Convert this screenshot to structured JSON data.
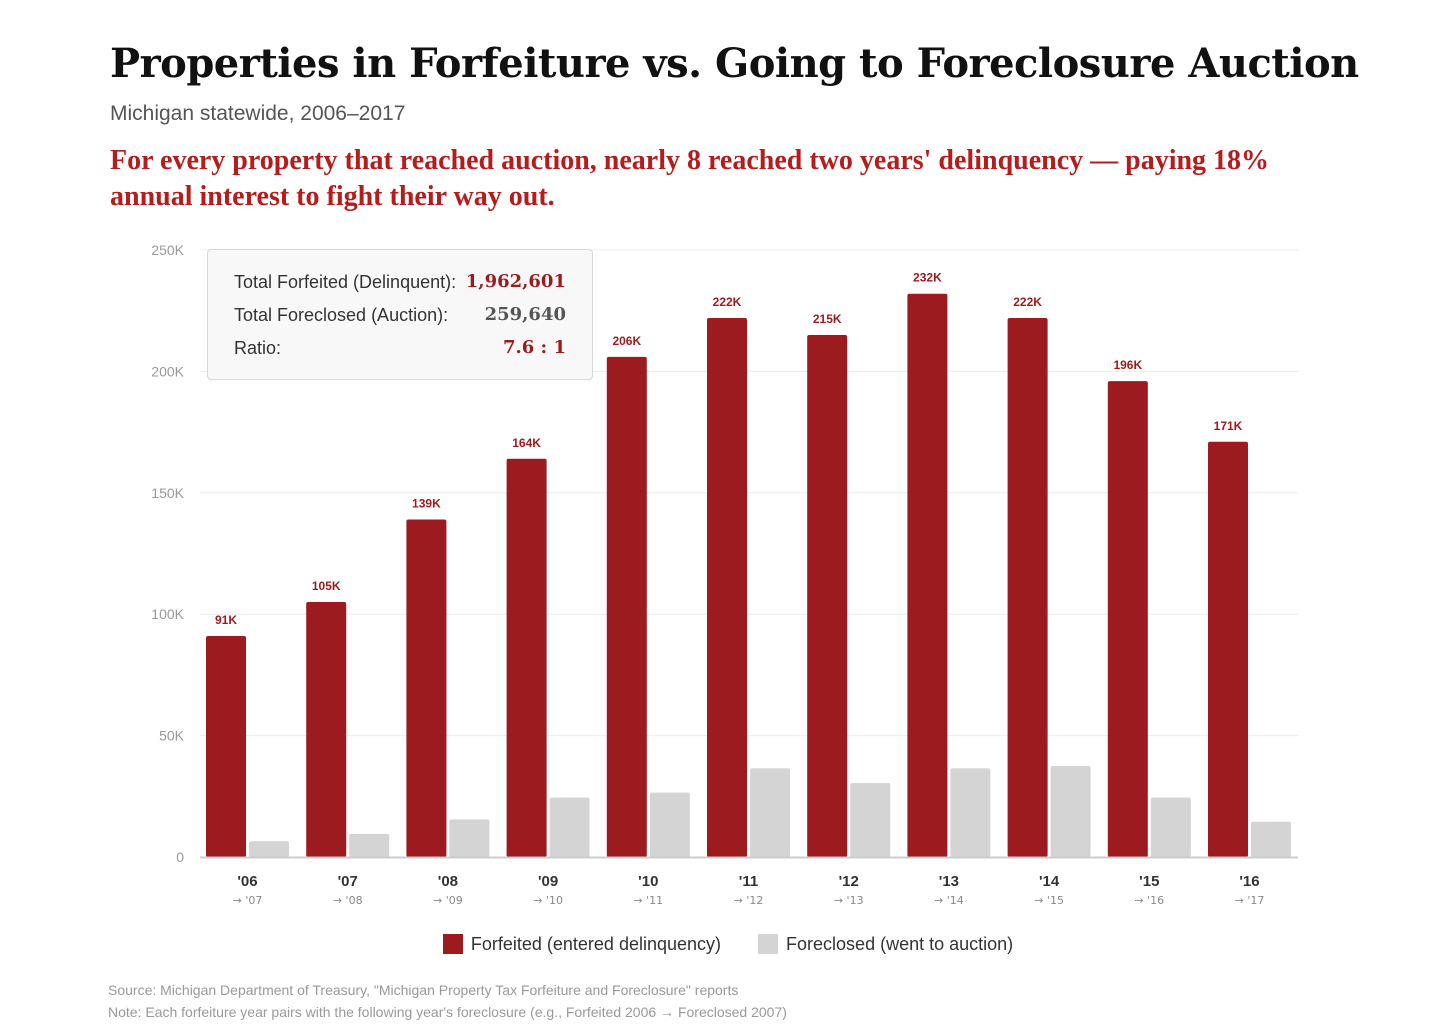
{
  "title": "Properties in Forfeiture vs. Going to Foreclosure Auction",
  "subtitle": "Michigan statewide, 2006–2017",
  "headline": "For every property that reached auction, nearly 8 reached two years' delinquency — paying 18% annual interest to fight their way out.",
  "summary": {
    "forfeited_label": "Total Forfeited (Delinquent):",
    "forfeited_value": "1,962,601",
    "foreclosed_label": "Total Foreclosed (Auction):",
    "foreclosed_value": "259,640",
    "ratio_label": "Ratio:",
    "ratio_value": "7.6 : 1"
  },
  "legend": {
    "forfeited": "Forfeited (entered delinquency)",
    "foreclosed": "Foreclosed (went to auction)"
  },
  "footer": {
    "source": "Source: Michigan Department of Treasury, \"Michigan Property Tax Forfeiture and Foreclosure\" reports",
    "note": "Note: Each forfeiture year pairs with the following year's foreclosure (e.g., Forfeited 2006 → Foreclosed 2007)"
  },
  "colors": {
    "forfeited": "#9b1b1e",
    "foreclosed": "#d4d4d4",
    "headline": "#b51c1c"
  },
  "chart_data": {
    "type": "bar",
    "categories": [
      "'06",
      "'07",
      "'08",
      "'09",
      "'10",
      "'11",
      "'12",
      "'13",
      "'14",
      "'15",
      "'16"
    ],
    "sub_labels": [
      "→ '07",
      "→ '08",
      "→ '09",
      "→ '10",
      "→ '11",
      "→ '12",
      "→ '13",
      "→ '14",
      "→ '15",
      "→ '16",
      "→ '17"
    ],
    "series": [
      {
        "name": "Forfeited (entered delinquency)",
        "values": [
          91000,
          105000,
          139000,
          164000,
          206000,
          222000,
          215000,
          232000,
          222000,
          196000,
          171000
        ],
        "labels": [
          "91K",
          "105K",
          "139K",
          "164K",
          "206K",
          "222K",
          "215K",
          "232K",
          "222K",
          "196K",
          "171K"
        ]
      },
      {
        "name": "Foreclosed (went to auction)",
        "values": [
          6500,
          9500,
          15500,
          24500,
          26500,
          36500,
          30500,
          36500,
          37500,
          24500,
          14500
        ]
      }
    ],
    "y_ticks": [
      0,
      50000,
      100000,
      150000,
      200000,
      250000
    ],
    "y_tick_labels": [
      "0",
      "50K",
      "100K",
      "150K",
      "200K",
      "250K"
    ],
    "ylim": [
      0,
      250000
    ],
    "grid": true,
    "legend_position": "bottom-center",
    "xlabel": "",
    "ylabel": ""
  }
}
